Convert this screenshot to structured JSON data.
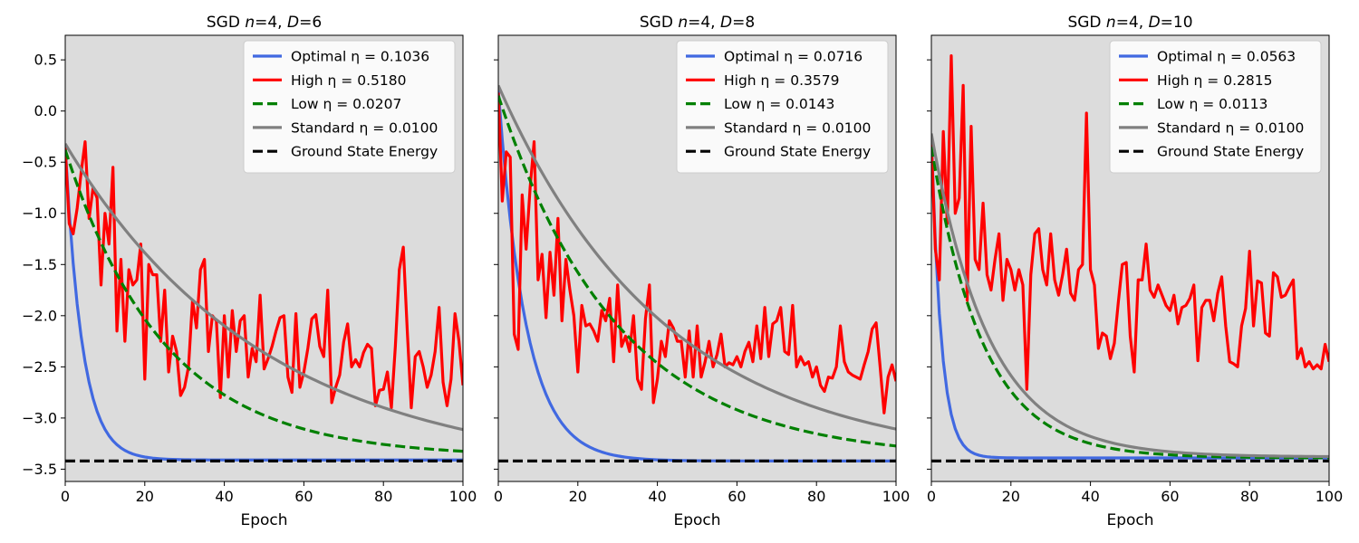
{
  "chart_data": [
    {
      "type": "line",
      "title": "SGD n=4, D=6",
      "title_parts": {
        "pre": "SGD ",
        "n_var": "n",
        "n_val": "=4, ",
        "d_var": "D",
        "d_val": "=6"
      },
      "xlabel": "Epoch",
      "ylabel": "",
      "xlim": [
        0,
        100
      ],
      "ylim": [
        -3.62,
        0.74
      ],
      "xticks": [
        0,
        20,
        40,
        60,
        80,
        100
      ],
      "yticks": [
        0.5,
        0.0,
        -0.5,
        -1.0,
        -1.5,
        -2.0,
        -2.5,
        -3.0,
        -3.5
      ],
      "ytick_labels": [
        "0.5",
        "0.0",
        "−0.5",
        "−1.0",
        "−1.5",
        "−2.0",
        "−2.5",
        "−3.0",
        "−3.5"
      ],
      "background": "#dcdcdc",
      "legend_position": "top-right",
      "ground_state_energy": -3.42,
      "series": [
        {
          "name": "Optimal η = 0.1036",
          "color": "#4169e1",
          "dash": "solid",
          "model": {
            "kind": "exp",
            "start": -0.35,
            "end": -3.41,
            "tau": 4.3
          }
        },
        {
          "name": "High η = 0.5180",
          "color": "#ff0000",
          "dash": "solid",
          "x": [
            0,
            1,
            2,
            3,
            4,
            5,
            6,
            7,
            8,
            9,
            10,
            11,
            12,
            13,
            14,
            15,
            16,
            17,
            18,
            19,
            20,
            21,
            22,
            23,
            24,
            25,
            26,
            27,
            28,
            29,
            30,
            31,
            32,
            33,
            34,
            35,
            36,
            37,
            38,
            39,
            40,
            41,
            42,
            43,
            44,
            45,
            46,
            47,
            48,
            49,
            50,
            51,
            52,
            53,
            54,
            55,
            56,
            57,
            58,
            59,
            60,
            61,
            62,
            63,
            64,
            65,
            66,
            67,
            68,
            69,
            70,
            71,
            72,
            73,
            74,
            75,
            76,
            77,
            78,
            79,
            80,
            81,
            82,
            83,
            84,
            85,
            86,
            87,
            88,
            89,
            90,
            91,
            92,
            93,
            94,
            95,
            96,
            97,
            98,
            99,
            100
          ],
          "y": [
            -0.35,
            -1.1,
            -1.2,
            -0.95,
            -0.6,
            -0.3,
            -1.05,
            -0.75,
            -0.85,
            -1.7,
            -1.0,
            -1.3,
            -0.55,
            -2.15,
            -1.45,
            -2.25,
            -1.55,
            -1.7,
            -1.65,
            -1.3,
            -2.62,
            -1.5,
            -1.6,
            -1.6,
            -2.25,
            -1.75,
            -2.55,
            -2.2,
            -2.35,
            -2.78,
            -2.7,
            -2.5,
            -1.85,
            -2.12,
            -1.55,
            -1.45,
            -2.35,
            -2.0,
            -2.05,
            -2.8,
            -2.0,
            -2.6,
            -1.95,
            -2.35,
            -2.05,
            -2.0,
            -2.6,
            -2.32,
            -2.45,
            -1.8,
            -2.52,
            -2.42,
            -2.3,
            -2.15,
            -2.02,
            -2.0,
            -2.6,
            -2.75,
            -1.98,
            -2.7,
            -2.55,
            -2.32,
            -2.03,
            -1.99,
            -2.3,
            -2.4,
            -1.75,
            -2.85,
            -2.7,
            -2.58,
            -2.26,
            -2.08,
            -2.5,
            -2.43,
            -2.5,
            -2.36,
            -2.28,
            -2.32,
            -2.88,
            -2.73,
            -2.72,
            -2.55,
            -2.9,
            -2.3,
            -1.55,
            -1.33,
            -2.15,
            -2.9,
            -2.4,
            -2.35,
            -2.5,
            -2.7,
            -2.58,
            -2.35,
            -1.92,
            -2.65,
            -2.88,
            -2.62,
            -1.98,
            -2.25,
            -2.68
          ]
        },
        {
          "name": "Low η = 0.0207",
          "color": "#008000",
          "dash": "dashed",
          "model": {
            "kind": "exp",
            "start": -0.38,
            "end": -3.38,
            "tau": 25
          }
        },
        {
          "name": "Standard η = 0.0100",
          "color": "#808080",
          "dash": "solid",
          "model": {
            "kind": "exp",
            "start": -0.32,
            "end": -3.55,
            "tau": 50
          }
        },
        {
          "name": "Ground State Energy",
          "color": "#000000",
          "dash": "dashed",
          "model": {
            "kind": "const",
            "value": -3.42
          }
        }
      ]
    },
    {
      "type": "line",
      "title": "SGD n=4, D=8",
      "title_parts": {
        "pre": "SGD ",
        "n_var": "n",
        "n_val": "=4, ",
        "d_var": "D",
        "d_val": "=8"
      },
      "xlabel": "Epoch",
      "ylabel": "",
      "xlim": [
        0,
        100
      ],
      "ylim": [
        -3.62,
        0.74
      ],
      "xticks": [
        0,
        20,
        40,
        60,
        80,
        100
      ],
      "yticks": [],
      "ytick_labels": [],
      "background": "#dcdcdc",
      "legend_position": "top-right",
      "ground_state_energy": -3.42,
      "series": [
        {
          "name": "Optimal η = 0.0716",
          "color": "#4169e1",
          "dash": "solid",
          "model": {
            "kind": "exp",
            "start": 0.2,
            "end": -3.42,
            "tau": 7.0
          }
        },
        {
          "name": "High η = 0.3579",
          "color": "#ff0000",
          "dash": "solid",
          "x": [
            0,
            1,
            2,
            3,
            4,
            5,
            6,
            7,
            8,
            9,
            10,
            11,
            12,
            13,
            14,
            15,
            16,
            17,
            18,
            19,
            20,
            21,
            22,
            23,
            24,
            25,
            26,
            27,
            28,
            29,
            30,
            31,
            32,
            33,
            34,
            35,
            36,
            37,
            38,
            39,
            40,
            41,
            42,
            43,
            44,
            45,
            46,
            47,
            48,
            49,
            50,
            51,
            52,
            53,
            54,
            55,
            56,
            57,
            58,
            59,
            60,
            61,
            62,
            63,
            64,
            65,
            66,
            67,
            68,
            69,
            70,
            71,
            72,
            73,
            74,
            75,
            76,
            77,
            78,
            79,
            80,
            81,
            82,
            83,
            84,
            85,
            86,
            87,
            88,
            89,
            90,
            91,
            92,
            93,
            94,
            95,
            96,
            97,
            98,
            99,
            100
          ],
          "y": [
            0.18,
            -0.88,
            -0.4,
            -0.45,
            -2.18,
            -2.33,
            -0.82,
            -1.35,
            -0.75,
            -0.3,
            -1.65,
            -1.4,
            -2.02,
            -1.38,
            -1.8,
            -1.05,
            -2.05,
            -1.45,
            -1.75,
            -2.0,
            -2.55,
            -1.9,
            -2.1,
            -2.08,
            -2.15,
            -2.25,
            -1.95,
            -2.05,
            -1.83,
            -2.45,
            -1.7,
            -2.3,
            -2.2,
            -2.35,
            -2.0,
            -2.62,
            -2.72,
            -2.03,
            -1.7,
            -2.85,
            -2.62,
            -2.25,
            -2.4,
            -2.05,
            -2.12,
            -2.25,
            -2.25,
            -2.6,
            -2.15,
            -2.6,
            -2.1,
            -2.6,
            -2.45,
            -2.25,
            -2.5,
            -2.38,
            -2.18,
            -2.5,
            -2.46,
            -2.48,
            -2.4,
            -2.5,
            -2.35,
            -2.26,
            -2.45,
            -2.1,
            -2.42,
            -1.92,
            -2.4,
            -2.08,
            -2.05,
            -1.92,
            -2.35,
            -2.38,
            -1.9,
            -2.5,
            -2.4,
            -2.48,
            -2.45,
            -2.6,
            -2.5,
            -2.68,
            -2.74,
            -2.6,
            -2.61,
            -2.5,
            -2.1,
            -2.45,
            -2.55,
            -2.58,
            -2.6,
            -2.62,
            -2.48,
            -2.35,
            -2.13,
            -2.07,
            -2.5,
            -2.95,
            -2.6,
            -2.48,
            -2.64
          ]
        },
        {
          "name": "Low η = 0.0143",
          "color": "#008000",
          "dash": "dashed",
          "model": {
            "kind": "exp",
            "start": 0.15,
            "end": -3.4,
            "tau": 30
          }
        },
        {
          "name": "Standard η = 0.0100",
          "color": "#808080",
          "dash": "solid",
          "model": {
            "kind": "exp",
            "start": 0.25,
            "end": -3.45,
            "tau": 42
          }
        },
        {
          "name": "Ground State Energy",
          "color": "#000000",
          "dash": "dashed",
          "model": {
            "kind": "const",
            "value": -3.42
          }
        }
      ]
    },
    {
      "type": "line",
      "title": "SGD n=4, D=10",
      "title_parts": {
        "pre": "SGD ",
        "n_var": "n",
        "n_val": "=4, ",
        "d_var": "D",
        "d_val": "=10"
      },
      "xlabel": "Epoch",
      "ylabel": "",
      "xlim": [
        0,
        100
      ],
      "ylim": [
        -3.62,
        0.74
      ],
      "xticks": [
        0,
        20,
        40,
        60,
        80,
        100
      ],
      "yticks": [],
      "ytick_labels": [],
      "background": "#dcdcdc",
      "legend_position": "top-right",
      "ground_state_energy": -3.42,
      "series": [
        {
          "name": "Optimal η = 0.0563",
          "color": "#4169e1",
          "dash": "solid",
          "model": {
            "kind": "exp",
            "start": -0.25,
            "end": -3.39,
            "tau": 2.5
          }
        },
        {
          "name": "High η = 0.2815",
          "color": "#ff0000",
          "dash": "solid",
          "x": [
            0,
            1,
            2,
            3,
            4,
            5,
            6,
            7,
            8,
            9,
            10,
            11,
            12,
            13,
            14,
            15,
            16,
            17,
            18,
            19,
            20,
            21,
            22,
            23,
            24,
            25,
            26,
            27,
            28,
            29,
            30,
            31,
            32,
            33,
            34,
            35,
            36,
            37,
            38,
            39,
            40,
            41,
            42,
            43,
            44,
            45,
            46,
            47,
            48,
            49,
            50,
            51,
            52,
            53,
            54,
            55,
            56,
            57,
            58,
            59,
            60,
            61,
            62,
            63,
            64,
            65,
            66,
            67,
            68,
            69,
            70,
            71,
            72,
            73,
            74,
            75,
            76,
            77,
            78,
            79,
            80,
            81,
            82,
            83,
            84,
            85,
            86,
            87,
            88,
            89,
            90,
            91,
            92,
            93,
            94,
            95,
            96,
            97,
            98,
            99,
            100
          ],
          "y": [
            -0.3,
            -1.35,
            -1.65,
            -0.2,
            -1.1,
            0.54,
            -1.0,
            -0.85,
            0.25,
            -1.85,
            -0.15,
            -1.45,
            -1.55,
            -0.9,
            -1.6,
            -1.75,
            -1.45,
            -1.2,
            -1.85,
            -1.45,
            -1.55,
            -1.75,
            -1.55,
            -1.7,
            -2.72,
            -1.6,
            -1.2,
            -1.15,
            -1.55,
            -1.7,
            -1.2,
            -1.65,
            -1.8,
            -1.6,
            -1.35,
            -1.78,
            -1.85,
            -1.55,
            -1.5,
            -0.02,
            -1.55,
            -1.7,
            -2.32,
            -2.17,
            -2.2,
            -2.42,
            -2.27,
            -1.87,
            -1.5,
            -1.48,
            -2.2,
            -2.55,
            -1.65,
            -1.65,
            -1.3,
            -1.75,
            -1.82,
            -1.7,
            -1.8,
            -1.9,
            -1.95,
            -1.8,
            -2.08,
            -1.92,
            -1.9,
            -1.83,
            -1.7,
            -2.44,
            -1.92,
            -1.85,
            -1.85,
            -2.05,
            -1.78,
            -1.62,
            -2.1,
            -2.45,
            -2.47,
            -2.5,
            -2.1,
            -1.93,
            -1.37,
            -2.1,
            -1.66,
            -1.68,
            -2.17,
            -2.2,
            -1.58,
            -1.62,
            -1.82,
            -1.8,
            -1.72,
            -1.65,
            -2.42,
            -2.32,
            -2.5,
            -2.45,
            -2.52,
            -2.48,
            -2.52,
            -2.28,
            -2.45
          ]
        },
        {
          "name": "Low η = 0.0113",
          "color": "#008000",
          "dash": "dashed",
          "model": {
            "kind": "exp",
            "start": -0.35,
            "end": -3.39,
            "tau": 13
          }
        },
        {
          "name": "Standard η = 0.0100",
          "color": "#808080",
          "dash": "solid",
          "model": {
            "kind": "exp",
            "start": -0.22,
            "end": -3.38,
            "tau": 14.5
          }
        },
        {
          "name": "Ground State Energy",
          "color": "#000000",
          "dash": "dashed",
          "model": {
            "kind": "const",
            "value": -3.42
          }
        }
      ]
    }
  ]
}
